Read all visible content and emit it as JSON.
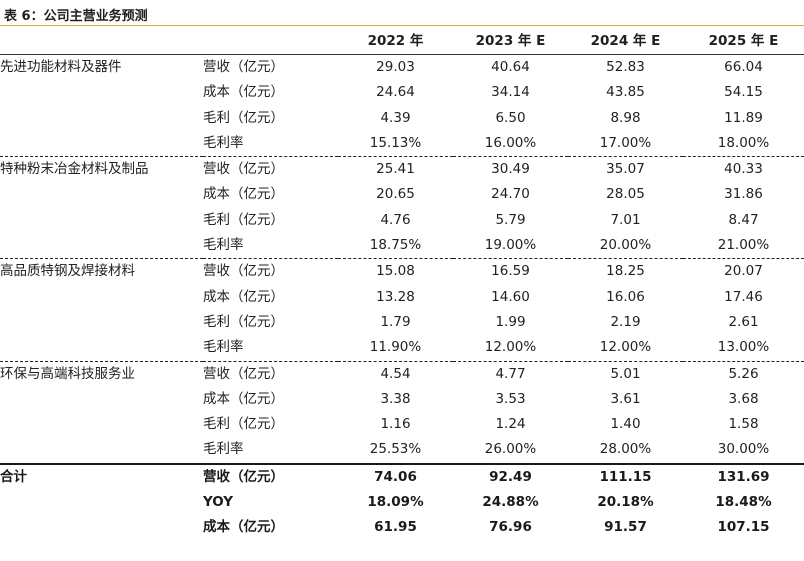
{
  "caption": "表 6：公司主营业务预测",
  "columns": [
    "",
    "",
    "2022 年",
    "2023 年 E",
    "2024 年 E",
    "2025 年 E"
  ],
  "groups": [
    {
      "segment": "先进功能材料及器件",
      "rows": [
        {
          "metric": "营收（亿元）",
          "values": [
            "29.03",
            "40.64",
            "52.83",
            "66.04"
          ]
        },
        {
          "metric": "成本（亿元）",
          "values": [
            "24.64",
            "34.14",
            "43.85",
            "54.15"
          ]
        },
        {
          "metric": "毛利（亿元）",
          "values": [
            "4.39",
            "6.50",
            "8.98",
            "11.89"
          ]
        },
        {
          "metric": "毛利率",
          "values": [
            "15.13%",
            "16.00%",
            "17.00%",
            "18.00%"
          ]
        }
      ]
    },
    {
      "segment": "特种粉末冶金材料及制品",
      "rows": [
        {
          "metric": "营收（亿元）",
          "values": [
            "25.41",
            "30.49",
            "35.07",
            "40.33"
          ]
        },
        {
          "metric": "成本（亿元）",
          "values": [
            "20.65",
            "24.70",
            "28.05",
            "31.86"
          ]
        },
        {
          "metric": "毛利（亿元）",
          "values": [
            "4.76",
            "5.79",
            "7.01",
            "8.47"
          ]
        },
        {
          "metric": "毛利率",
          "values": [
            "18.75%",
            "19.00%",
            "20.00%",
            "21.00%"
          ]
        }
      ]
    },
    {
      "segment": "高品质特钢及焊接材料",
      "rows": [
        {
          "metric": "营收（亿元）",
          "values": [
            "15.08",
            "16.59",
            "18.25",
            "20.07"
          ]
        },
        {
          "metric": "成本（亿元）",
          "values": [
            "13.28",
            "14.60",
            "16.06",
            "17.46"
          ]
        },
        {
          "metric": "毛利（亿元）",
          "values": [
            "1.79",
            "1.99",
            "2.19",
            "2.61"
          ]
        },
        {
          "metric": "毛利率",
          "values": [
            "11.90%",
            "12.00%",
            "12.00%",
            "13.00%"
          ]
        }
      ]
    },
    {
      "segment": "环保与高端科技服务业",
      "rows": [
        {
          "metric": "营收（亿元）",
          "values": [
            "4.54",
            "4.77",
            "5.01",
            "5.26"
          ]
        },
        {
          "metric": "成本（亿元）",
          "values": [
            "3.38",
            "3.53",
            "3.61",
            "3.68"
          ]
        },
        {
          "metric": "毛利（亿元）",
          "values": [
            "1.16",
            "1.24",
            "1.40",
            "1.58"
          ]
        },
        {
          "metric": "毛利率",
          "values": [
            "25.53%",
            "26.00%",
            "28.00%",
            "30.00%"
          ]
        }
      ]
    }
  ],
  "total": {
    "segment": "合计",
    "rows": [
      {
        "metric": "营收（亿元）",
        "values": [
          "74.06",
          "92.49",
          "111.15",
          "131.69"
        ]
      },
      {
        "metric": "YOY",
        "values": [
          "18.09%",
          "24.88%",
          "20.18%",
          "18.48%"
        ]
      },
      {
        "metric": "成本（亿元）",
        "values": [
          "61.95",
          "76.96",
          "91.57",
          "107.15"
        ]
      }
    ]
  }
}
